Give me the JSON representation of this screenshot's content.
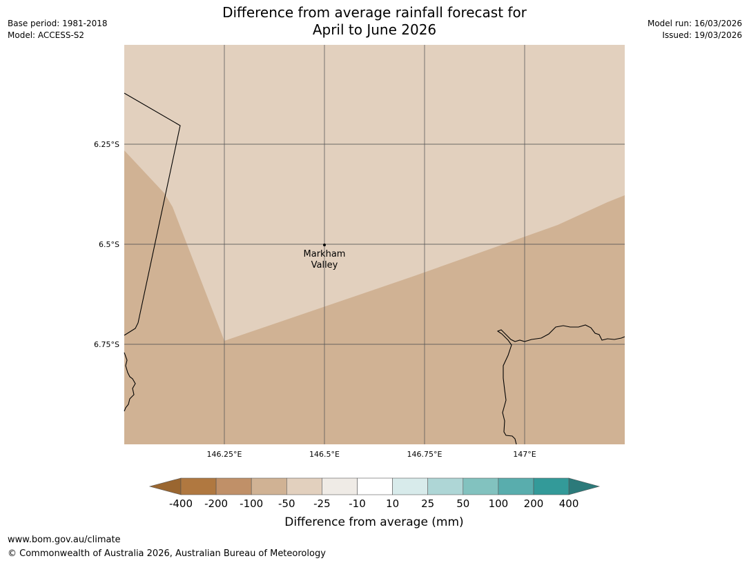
{
  "header": {
    "title_line1": "Difference from average rainfall forecast for",
    "title_line2": "April to June 2026",
    "base_period": "Base period: 1981-2018",
    "model": "Model: ACCESS-S2",
    "model_run": "Model run: 16/03/2026",
    "issued": "Issued: 19/03/2026"
  },
  "map": {
    "lon_ticks": [
      "146.25°E",
      "146.5°E",
      "146.75°E",
      "147°E"
    ],
    "lat_ticks": [
      "6.25°S",
      "6.5°S",
      "6.75°S"
    ],
    "place": {
      "name_line1": "Markham",
      "name_line2": "Valley"
    },
    "colors": {
      "background_category": "#e2d0be",
      "lower_category": "#d0b294",
      "gridline": "#555555",
      "coastline": "#000000"
    }
  },
  "colorbar": {
    "title": "Difference from average (mm)",
    "tick_labels": [
      "-400",
      "-200",
      "-100",
      "-50",
      "-25",
      "-10",
      "10",
      "25",
      "50",
      "100",
      "200",
      "400"
    ],
    "colors": [
      "#9a6630",
      "#b07840",
      "#c09068",
      "#d0b294",
      "#e2d0be",
      "#efebe6",
      "#ffffff",
      "#d8ebeb",
      "#aed6d6",
      "#82c2bf",
      "#59adad",
      "#339a99",
      "#2c7a7a"
    ]
  },
  "footer": {
    "url": "www.bom.gov.au/climate",
    "copyright": "© Commonwealth of Australia 2026, Australian Bureau of Meteorology"
  }
}
